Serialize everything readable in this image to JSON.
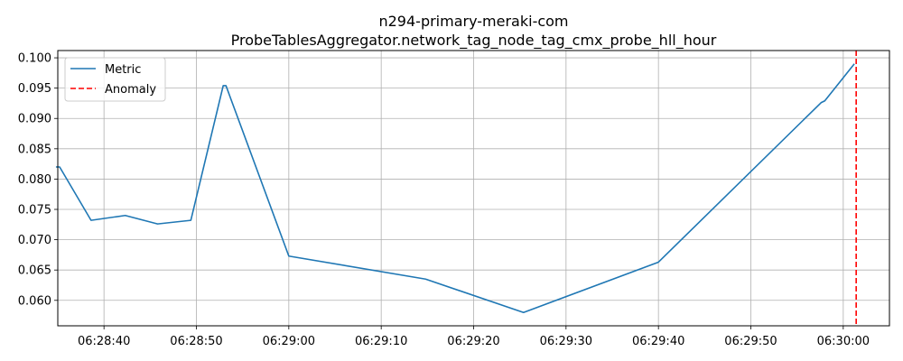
{
  "chart_data": {
    "type": "line",
    "title": "n294-primary-meraki-com",
    "subtitle": "ProbeTablesAggregator.network_tag_node_tag_cmx_probe_hll_hour",
    "xlabel": "",
    "ylabel": "",
    "xlim": [
      "06:28:35",
      "06:30:05"
    ],
    "ylim": [
      0.0558,
      0.1012
    ],
    "x_ticks": [
      "06:28:40",
      "06:28:50",
      "06:29:00",
      "06:29:10",
      "06:29:20",
      "06:29:30",
      "06:29:40",
      "06:29:50",
      "06:30:00"
    ],
    "y_ticks": [
      "0.060",
      "0.065",
      "0.070",
      "0.075",
      "0.080",
      "0.085",
      "0.090",
      "0.095",
      "0.100"
    ],
    "grid": true,
    "legend_position": "top-left",
    "series": [
      {
        "name": "Metric",
        "color": "#1f77b4",
        "style": "solid",
        "x": [
          "06:28:34.8",
          "06:28:35.2",
          "06:28:38.6",
          "06:28:42.3",
          "06:28:45.8",
          "06:28:49.4",
          "06:28:52.9",
          "06:28:53.2",
          "06:29:00.0",
          "06:29:14.8",
          "06:29:25.4",
          "06:29:40.0",
          "06:29:57.6",
          "06:29:58.0",
          "06:30:01.2"
        ],
        "values": [
          0.082,
          0.082,
          0.0732,
          0.074,
          0.0726,
          0.0732,
          0.0954,
          0.0954,
          0.0673,
          0.0635,
          0.058,
          0.0663,
          0.0926,
          0.0929,
          0.099
        ]
      },
      {
        "name": "Anomaly",
        "color": "#ff0000",
        "style": "dashed",
        "x": [
          "06:30:01.4"
        ]
      }
    ]
  }
}
